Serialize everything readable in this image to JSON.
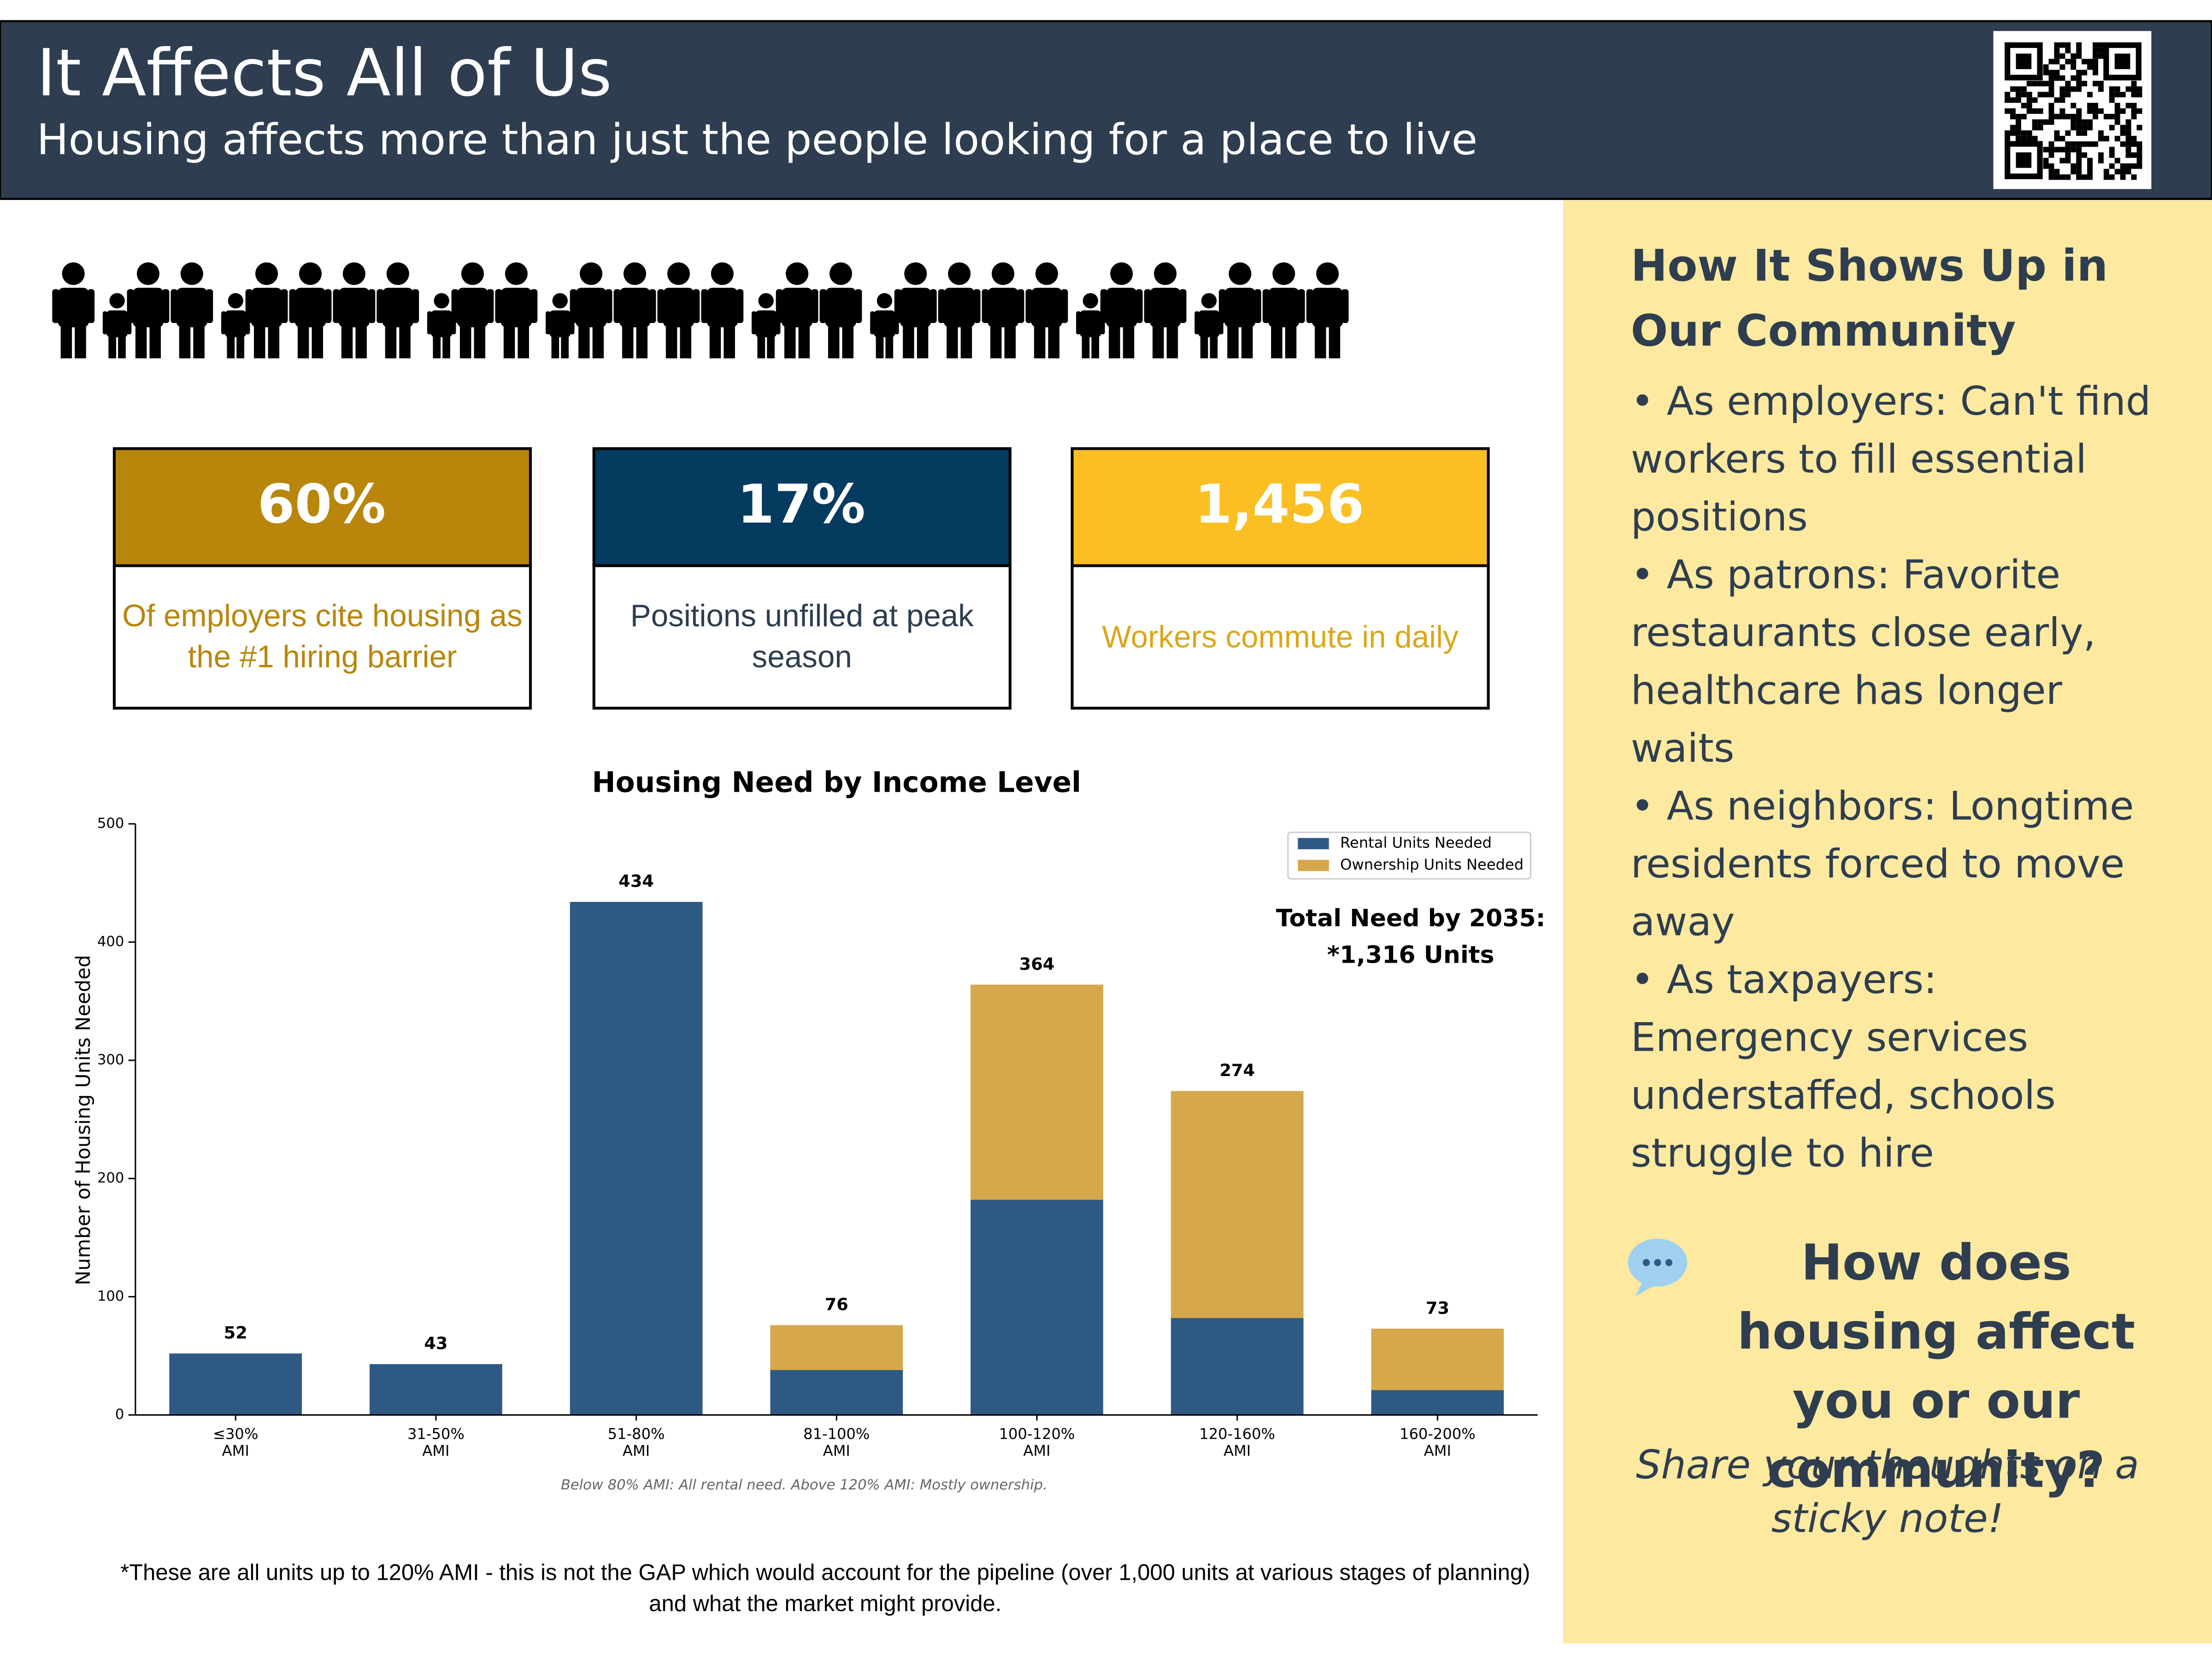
{
  "header": {
    "title": "It Affects All of Us",
    "subtitle": "Housing affects more than just the people looking for a place to live"
  },
  "stats": [
    {
      "value": "60%",
      "text": "Of employers cite housing as the #1 hiring barrier",
      "color": "#b8860b",
      "text_color": "#b8860b"
    },
    {
      "value": "17%",
      "text": "Positions unfilled at peak season",
      "color": "#043b5f",
      "text_color": "#2e3d4f"
    },
    {
      "value": "1,456",
      "text": "Workers commute in daily",
      "color": "#fbbf24",
      "text_color": "#dba718"
    }
  ],
  "chart_data": {
    "type": "stacked_bar",
    "title": "Housing Need by Income Level",
    "y_label": "Number of Housing Units Needed",
    "categories": [
      "≤30% AMI",
      "31-50% AMI",
      "51-80% AMI",
      "81-100% AMI",
      "100-120% AMI",
      "120-160% AMI",
      "160-200% AMI"
    ],
    "series": [
      {
        "name": "Rental Units Needed",
        "color": "#2e5984",
        "values": [
          52,
          43,
          434,
          38,
          182,
          82,
          21
        ]
      },
      {
        "name": "Ownership Units Needed",
        "color": "#d4a84b",
        "values": [
          0,
          0,
          0,
          38,
          182,
          192,
          52
        ]
      }
    ],
    "totals": [
      52,
      43,
      434,
      76,
      364,
      274,
      73
    ],
    "ylim": [
      0,
      500
    ],
    "yticks": [
      0,
      100,
      200,
      300,
      400,
      500
    ],
    "legend": "upper right",
    "annotation": [
      "Total Need by 2035:",
      "*1,316 Units"
    ],
    "note": "Below 80% AMI: All rental need. Above 120% AMI: Mostly ownership."
  },
  "footnote": "*These are all units up to 120% AMI - this is not the GAP which would account for the pipeline (over 1,000 units at various stages of planning) and what the market might provide.",
  "panel": {
    "heading": "How It Shows Up in Our Community",
    "bullets": [
      "• As employers: Can't find workers to fill essential positions",
      "• As patrons: Favorite restaurants close early, healthcare has longer waits",
      "• As neighbors: Longtime residents forced to move away",
      "• As taxpayers: Emergency services understaffed, schools struggle to hire"
    ],
    "question": "How does housing affect you or our community?",
    "prompt": "Share your thoughts on a sticky note!"
  }
}
